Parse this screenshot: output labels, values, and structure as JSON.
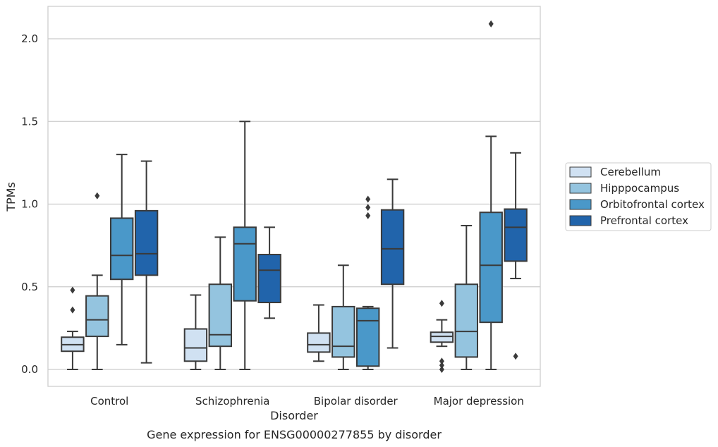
{
  "chart_data": {
    "type": "boxplot",
    "xlabel": "Disorder",
    "ylabel": "TPMs",
    "caption": "Gene expression for ENSG00000277855 by disorder",
    "ylim": [
      -0.1,
      2.2
    ],
    "yticks": [
      "0.0",
      "0.5",
      "1.0",
      "1.5",
      "2.0"
    ],
    "grid": "horizontal",
    "legend_position": "right",
    "categories": [
      "Control",
      "Schizophrenia",
      "Bipolar disorder",
      "Major depression"
    ],
    "series": [
      {
        "name": "Cerebellum",
        "color": "#d0e1f2",
        "boxes": [
          {
            "q1": 0.11,
            "median": 0.15,
            "q3": 0.195,
            "low": 0.0,
            "high": 0.23,
            "outliers": [
              0.36,
              0.48
            ]
          },
          {
            "q1": 0.05,
            "median": 0.13,
            "q3": 0.245,
            "low": 0.0,
            "high": 0.45,
            "outliers": []
          },
          {
            "q1": 0.105,
            "median": 0.15,
            "q3": 0.22,
            "low": 0.05,
            "high": 0.39,
            "outliers": []
          },
          {
            "q1": 0.165,
            "median": 0.2,
            "q3": 0.225,
            "low": 0.14,
            "high": 0.3,
            "outliers": [
              0.4,
              0.05,
              0.025,
              0.0
            ]
          }
        ]
      },
      {
        "name": "Hipppocampus",
        "color": "#94c4df",
        "boxes": [
          {
            "q1": 0.2,
            "median": 0.3,
            "q3": 0.445,
            "low": 0.0,
            "high": 0.57,
            "outliers": [
              1.05
            ]
          },
          {
            "q1": 0.14,
            "median": 0.21,
            "q3": 0.515,
            "low": 0.0,
            "high": 0.8,
            "outliers": []
          },
          {
            "q1": 0.075,
            "median": 0.14,
            "q3": 0.38,
            "low": 0.0,
            "high": 0.63,
            "outliers": []
          },
          {
            "q1": 0.075,
            "median": 0.23,
            "q3": 0.515,
            "low": 0.0,
            "high": 0.87,
            "outliers": []
          }
        ]
      },
      {
        "name": "Orbitofrontal cortex",
        "color": "#4a98c9",
        "boxes": [
          {
            "q1": 0.545,
            "median": 0.69,
            "q3": 0.915,
            "low": 0.15,
            "high": 1.3,
            "outliers": []
          },
          {
            "q1": 0.415,
            "median": 0.76,
            "q3": 0.86,
            "low": 0.0,
            "high": 1.5,
            "outliers": []
          },
          {
            "q1": 0.02,
            "median": 0.295,
            "q3": 0.37,
            "low": 0.0,
            "high": 0.38,
            "outliers": [
              0.93,
              0.98,
              1.03
            ]
          },
          {
            "q1": 0.285,
            "median": 0.63,
            "q3": 0.95,
            "low": 0.0,
            "high": 1.41,
            "outliers": [
              2.09
            ]
          }
        ]
      },
      {
        "name": "Prefrontal cortex",
        "color": "#2164ab",
        "boxes": [
          {
            "q1": 0.57,
            "median": 0.7,
            "q3": 0.96,
            "low": 0.04,
            "high": 1.26,
            "outliers": []
          },
          {
            "q1": 0.405,
            "median": 0.6,
            "q3": 0.695,
            "low": 0.31,
            "high": 0.86,
            "outliers": []
          },
          {
            "q1": 0.515,
            "median": 0.73,
            "q3": 0.965,
            "low": 0.13,
            "high": 1.15,
            "outliers": []
          },
          {
            "q1": 0.655,
            "median": 0.86,
            "q3": 0.97,
            "low": 0.55,
            "high": 1.31,
            "outliers": [
              0.08
            ]
          }
        ]
      }
    ]
  }
}
